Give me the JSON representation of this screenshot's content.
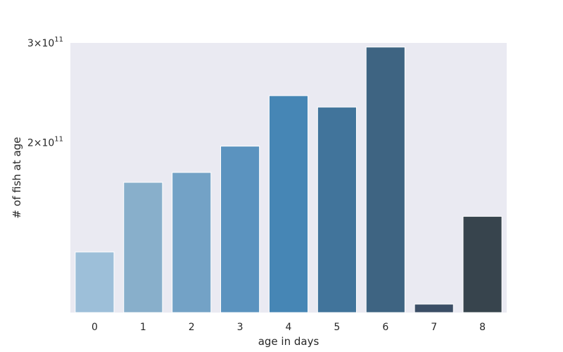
{
  "chart_data": {
    "type": "bar",
    "xlabel": "age in days",
    "ylabel": "# of fish at age",
    "categories": [
      "0",
      "1",
      "2",
      "3",
      "4",
      "5",
      "6",
      "7",
      "8"
    ],
    "values": [
      128000000000.0,
      170000000000.0,
      177000000000.0,
      197000000000.0,
      242000000000.0,
      231000000000.0,
      295000000000.0,
      103500000000.0,
      148000000000.0
    ],
    "ylim": [
      100000000000.0,
      300000000000.0
    ],
    "yscale": "log",
    "yticks": [
      {
        "value": 200000000000.0,
        "mantissa": "2",
        "times": "×",
        "base": "10",
        "exponent": "11"
      },
      {
        "value": 300000000000.0,
        "mantissa": "3",
        "times": "×",
        "base": "10",
        "exponent": "11"
      }
    ],
    "grid": false,
    "background": "#eaeaf2",
    "colors": [
      "#9dbfd9",
      "#88afcb",
      "#73a2c6",
      "#5b93bf",
      "#4686b5",
      "#41749b",
      "#3e6482",
      "#3b4e66",
      "#37444d"
    ]
  }
}
